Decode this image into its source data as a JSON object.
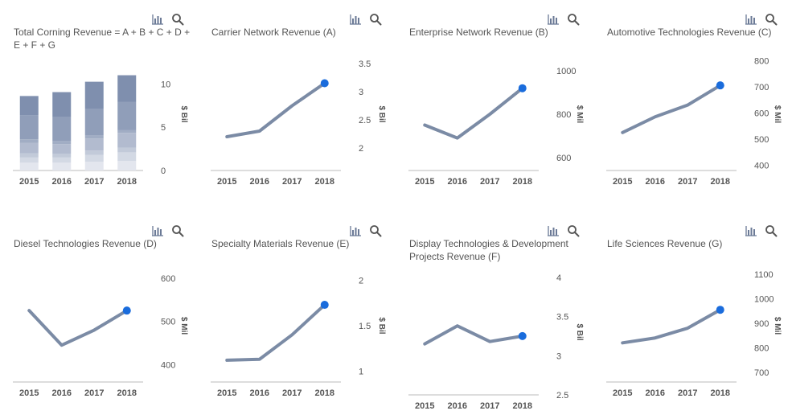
{
  "colors": {
    "line": "#7b8ba5",
    "point": "#1a6cdc",
    "axis": "#bbbbbb"
  },
  "icons": {
    "chart": "bar-chart-icon",
    "search": "search-icon"
  },
  "chart_data": [
    {
      "type": "bar",
      "title": "Total Corning Revenue = A + B + C + D + E + F + G",
      "categories": [
        "2015",
        "2016",
        "2017",
        "2018"
      ],
      "stacked": true,
      "series": [
        {
          "values": [
            0.9,
            0.9,
            1.0,
            1.1
          ]
        },
        {
          "values": [
            0.6,
            0.6,
            0.8,
            1.0
          ]
        },
        {
          "values": [
            0.5,
            0.45,
            0.5,
            0.55
          ]
        },
        {
          "values": [
            1.2,
            1.1,
            1.4,
            1.7
          ]
        },
        {
          "values": [
            0.4,
            0.35,
            0.35,
            0.3
          ]
        },
        {
          "values": [
            2.8,
            2.75,
            3.1,
            3.25
          ]
        },
        {
          "values": [
            2.2,
            2.9,
            3.1,
            3.1
          ]
        }
      ],
      "yticks": [
        "0",
        "5",
        "10"
      ],
      "ylim": [
        0,
        13
      ],
      "ylabel": "$ Bil",
      "axis_side": "right"
    },
    {
      "type": "line",
      "title": "Carrier Network Revenue (A)",
      "x": [
        "2015",
        "2016",
        "2017",
        "2018"
      ],
      "values": [
        2.2,
        2.3,
        2.75,
        3.15
      ],
      "ylim": [
        1.6,
        3.6
      ],
      "yticks": [
        "2",
        "2.5",
        "3",
        "3.5"
      ],
      "ylabel": "$ Bil"
    },
    {
      "type": "line",
      "title": "Enterprise Network Revenue (B)",
      "x": [
        "2015",
        "2016",
        "2017",
        "2018"
      ],
      "values": [
        750,
        690,
        800,
        920
      ],
      "ylim": [
        540,
        1060
      ],
      "yticks": [
        "600",
        "800",
        "1000"
      ],
      "ylabel": "$ Mil"
    },
    {
      "type": "line",
      "title": "Automotive Technologies Revenue (C)",
      "x": [
        "2015",
        "2016",
        "2017",
        "2018"
      ],
      "values": [
        525,
        585,
        630,
        705
      ],
      "ylim": [
        380,
        810
      ],
      "yticks": [
        "400",
        "500",
        "600",
        "700",
        "800"
      ],
      "ylabel": "$ Mil"
    },
    {
      "type": "line",
      "title": "Diesel Technologies Revenue (D)",
      "x": [
        "2015",
        "2016",
        "2017",
        "2018"
      ],
      "values": [
        525,
        445,
        480,
        525
      ],
      "ylim": [
        360,
        620
      ],
      "yticks": [
        "400",
        "500",
        "600"
      ],
      "ylabel": "$ Mil"
    },
    {
      "type": "line",
      "title": "Specialty Materials Revenue (E)",
      "x": [
        "2015",
        "2016",
        "2017",
        "2018"
      ],
      "values": [
        1.12,
        1.13,
        1.4,
        1.73
      ],
      "ylim": [
        0.88,
        2.12
      ],
      "yticks": [
        "1",
        "1.5",
        "2"
      ],
      "ylabel": "$ Bil"
    },
    {
      "type": "line",
      "title": "Display Technologies & Development Projects Revenue (F)",
      "x": [
        "2015",
        "2016",
        "2017",
        "2018"
      ],
      "values": [
        3.15,
        3.38,
        3.18,
        3.25
      ],
      "ylim": [
        2.5,
        4.1
      ],
      "yticks": [
        "2.5",
        "3",
        "3.5",
        "4"
      ],
      "ylabel": "$ Bil"
    },
    {
      "type": "line",
      "title": "Life Sciences Revenue (G)",
      "x": [
        "2015",
        "2016",
        "2017",
        "2018"
      ],
      "values": [
        820,
        840,
        880,
        955
      ],
      "ylim": [
        660,
        1120
      ],
      "yticks": [
        "700",
        "800",
        "900",
        "1000",
        "1100"
      ],
      "ylabel": "$ Mil"
    }
  ]
}
